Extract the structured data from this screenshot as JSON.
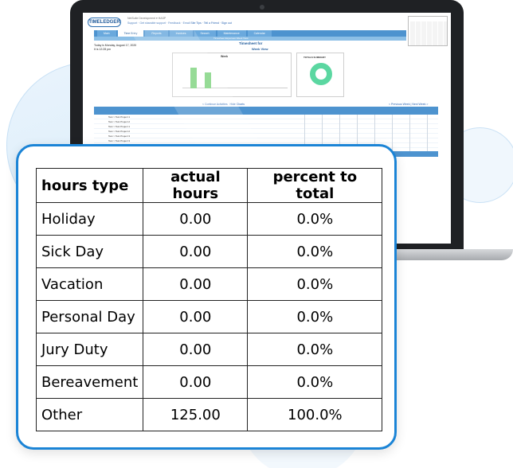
{
  "app": {
    "logo_text": "TIMELEDGER",
    "header_line": "NetSuite Development  ▾ HASP",
    "header_links": "Support · Get sharable support · Feedback · Email Site Tips · Tell a Friend · Sign out",
    "tabs": [
      "Main",
      "Time Entry",
      "Reports",
      "Invoices",
      "Search",
      "Maintenance",
      "Calendar"
    ],
    "active_tab": 1,
    "subbar_text": "Timesheet      Expenses      Week View",
    "today_line_1": "Today is Monday, August 17, 2020",
    "today_line_2": "It is 12:28 pm",
    "timesheet_for": "Timesheet for",
    "week_view": "Week View",
    "week_chart_title": "Week",
    "totals_title": "TOTALS SUMMARY",
    "link_continue": "< Continue Activities",
    "link_hide": "Hide Charts",
    "link_week_nav": "< Previous Week | Next Week >",
    "rows": [
      "Test > Test Project 1",
      "Test > Test Project 2",
      "Test > Test Project 1",
      "Test > Test Project 2",
      "Test > Test Project 3",
      "Test > Test Project 3"
    ]
  },
  "table": {
    "headers": [
      "hours type",
      "actual hours",
      "percent to total"
    ],
    "rows": [
      [
        "Holiday",
        "0.00",
        "0.0%"
      ],
      [
        "Sick Day",
        "0.00",
        "0.0%"
      ],
      [
        "Vacation",
        "0.00",
        "0.0%"
      ],
      [
        "Personal Day",
        "0.00",
        "0.0%"
      ],
      [
        "Jury Duty",
        "0.00",
        "0.0%"
      ],
      [
        "Bereavement",
        "0.00",
        "0.0%"
      ],
      [
        "Other",
        "125.00",
        "100.0%"
      ]
    ]
  },
  "colors": {
    "card_border": "#1b84d6",
    "app_blue": "#4d93cf",
    "chart_green": "#7fd37f",
    "donut_green": "#5bd7a1"
  }
}
